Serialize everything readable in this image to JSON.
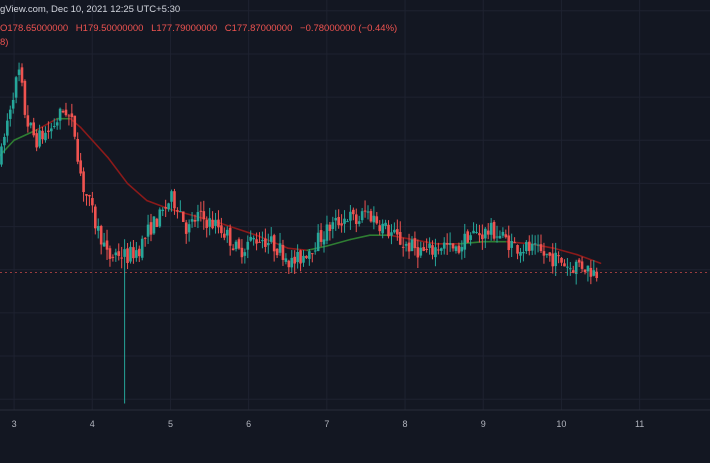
{
  "header": {
    "source_line": "gView.com, Dec 10, 2021 12:25 UTC+5:30",
    "ohlc": {
      "open": "O178.65000000",
      "high": "H179.50000000",
      "low": "L177.79000000",
      "close": "C177.87000000",
      "change": "−0.78000000 (−0.44%)"
    },
    "indicator_fragment": "8)"
  },
  "colors": {
    "background": "#131722",
    "grid": "#1e2230",
    "up": "#26a69a",
    "down": "#ef5350",
    "ma_above": "#8b1a1a",
    "ma_below": "#2e7d32",
    "axis_text": "#b2b5be",
    "reference_line": "#ef5350"
  },
  "chart_data": {
    "type": "candlestick",
    "x_ticks": [
      "3",
      "4",
      "5",
      "6",
      "7",
      "8",
      "9",
      "10",
      "11"
    ],
    "x_range": [
      2.82,
      11.9
    ],
    "y_range": [
      171.5,
      190.5
    ],
    "reference_price": 177.87,
    "spike_low": 171.8,
    "anchors": [
      [
        2.82,
        183.0
      ],
      [
        2.97,
        186.0
      ],
      [
        3.07,
        187.2
      ],
      [
        3.15,
        185.0
      ],
      [
        3.28,
        184.0
      ],
      [
        3.47,
        184.5
      ],
      [
        3.65,
        185.5
      ],
      [
        3.77,
        184.5
      ],
      [
        3.87,
        182.0
      ],
      [
        3.97,
        181.0
      ],
      [
        4.05,
        180.0
      ],
      [
        4.12,
        179.5
      ],
      [
        4.2,
        178.5
      ],
      [
        4.32,
        178.8
      ],
      [
        4.45,
        178.6
      ],
      [
        4.6,
        179.0
      ],
      [
        4.75,
        180.0
      ],
      [
        4.88,
        180.5
      ],
      [
        5.0,
        181.3
      ],
      [
        5.1,
        181.0
      ],
      [
        5.22,
        179.8
      ],
      [
        5.35,
        180.5
      ],
      [
        5.5,
        180.2
      ],
      [
        5.62,
        180.0
      ],
      [
        5.75,
        179.5
      ],
      [
        5.87,
        178.8
      ],
      [
        6.0,
        179.3
      ],
      [
        6.15,
        179.5
      ],
      [
        6.3,
        179.2
      ],
      [
        6.45,
        178.8
      ],
      [
        6.55,
        178.3
      ],
      [
        6.65,
        178.5
      ],
      [
        6.78,
        179.0
      ],
      [
        6.92,
        179.5
      ],
      [
        7.05,
        180.0
      ],
      [
        7.18,
        180.3
      ],
      [
        7.28,
        180.5
      ],
      [
        7.38,
        180.2
      ],
      [
        7.5,
        180.7
      ],
      [
        7.6,
        180.4
      ],
      [
        7.72,
        180.0
      ],
      [
        7.85,
        179.6
      ],
      [
        7.98,
        179.2
      ],
      [
        8.12,
        179.0
      ],
      [
        8.25,
        178.8
      ],
      [
        8.35,
        178.9
      ],
      [
        8.48,
        179.2
      ],
      [
        8.65,
        178.8
      ],
      [
        8.8,
        179.6
      ],
      [
        9.0,
        179.7
      ],
      [
        9.12,
        179.8
      ],
      [
        9.25,
        179.5
      ],
      [
        9.4,
        179.1
      ],
      [
        9.55,
        179.0
      ],
      [
        9.7,
        178.8
      ],
      [
        9.85,
        178.6
      ],
      [
        10.0,
        178.4
      ],
      [
        10.12,
        178.1
      ],
      [
        10.22,
        178.3
      ],
      [
        10.32,
        178.1
      ],
      [
        10.42,
        177.9
      ],
      [
        10.48,
        177.87
      ]
    ],
    "moving_average": [
      [
        2.82,
        183.3
      ],
      [
        3.0,
        184.0
      ],
      [
        3.3,
        184.5
      ],
      [
        3.55,
        185.0
      ],
      [
        3.72,
        185.0
      ],
      [
        3.85,
        184.6
      ],
      [
        4.0,
        184.0
      ],
      [
        4.2,
        183.2
      ],
      [
        4.45,
        182.0
      ],
      [
        4.7,
        181.2
      ],
      [
        5.0,
        180.8
      ],
      [
        5.3,
        180.5
      ],
      [
        5.6,
        180.2
      ],
      [
        5.85,
        179.9
      ],
      [
        6.1,
        179.6
      ],
      [
        6.3,
        179.3
      ],
      [
        6.5,
        179.0
      ],
      [
        6.75,
        178.9
      ],
      [
        7.0,
        179.1
      ],
      [
        7.3,
        179.4
      ],
      [
        7.55,
        179.6
      ],
      [
        7.8,
        179.6
      ],
      [
        8.1,
        179.4
      ],
      [
        8.4,
        179.2
      ],
      [
        8.7,
        179.2
      ],
      [
        9.0,
        179.3
      ],
      [
        9.3,
        179.3
      ],
      [
        9.6,
        179.2
      ],
      [
        9.9,
        179.0
      ],
      [
        10.2,
        178.7
      ],
      [
        10.5,
        178.3
      ]
    ]
  }
}
